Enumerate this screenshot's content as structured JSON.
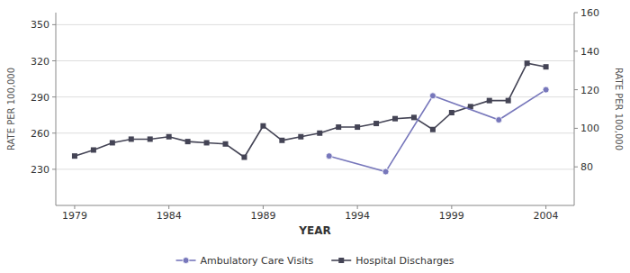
{
  "chart_data": {
    "type": "line",
    "x_label": "YEAR",
    "y_label": "RATE PER 100,000",
    "y2_label": "RATE PER 100,000",
    "xlim": [
      1978.0,
      2005.5
    ],
    "xticks": [
      1979,
      1984,
      1989,
      1994,
      1999,
      2004
    ],
    "ylim": [
      200,
      360
    ],
    "yticks": [
      230,
      260,
      290,
      320,
      350
    ],
    "y2lim": [
      60,
      160
    ],
    "y2ticks": [
      80,
      100,
      120,
      140,
      160
    ],
    "grid": true,
    "legend": "bottom",
    "series": [
      {
        "name": "Ambulatory Care Visits",
        "color": "#7777bb",
        "marker": "circle",
        "x": [
          1992.5,
          1995.5,
          1998.0,
          2001.5,
          2004.0
        ],
        "values": [
          241,
          228,
          291,
          271,
          296
        ]
      },
      {
        "name": "Hospital Discharges",
        "color": "#444455",
        "marker": "square",
        "x": [
          1979,
          1980,
          1981,
          1982,
          1983,
          1984,
          1985,
          1986,
          1987,
          1988,
          1989,
          1990,
          1991,
          1992,
          1993,
          1994,
          1995,
          1996,
          1997,
          1998,
          1999,
          2000,
          2001,
          2002,
          2003,
          2004
        ],
        "values": [
          241,
          246,
          252,
          255,
          255,
          257,
          253,
          252,
          251,
          240,
          266,
          254,
          257,
          260,
          265,
          265,
          268,
          272,
          273,
          263,
          277,
          282,
          287,
          287,
          318,
          315
        ]
      }
    ]
  }
}
